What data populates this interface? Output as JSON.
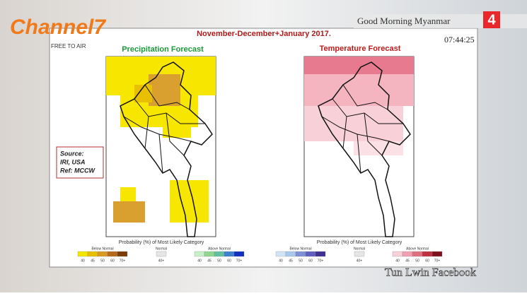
{
  "header": {
    "channel_logo": "Channel7",
    "free_to_air": "FREE TO AIR",
    "program": "Good Morning Myanmar",
    "channel_number": "4",
    "time": "07:44:25"
  },
  "slide": {
    "title": "November-December+January  2017.",
    "precipitation_title": "Precipitation Forecast",
    "temperature_title": "Temperature Forecast",
    "source": [
      "Source:",
      "IRI, USA",
      "Ref: MCCW"
    ],
    "legend": {
      "caption": "Probability (%) of Most Likely Category",
      "below": "Below Normal",
      "normal": "Normal",
      "above": "Above Normal",
      "below_ticks": [
        "40",
        "45",
        "50",
        "60",
        "70+"
      ],
      "normal_tick": "40+",
      "above_ticks": [
        "40",
        "45",
        "50",
        "60",
        "70+"
      ]
    }
  },
  "watermark": "Tun Lwin Facebook"
}
